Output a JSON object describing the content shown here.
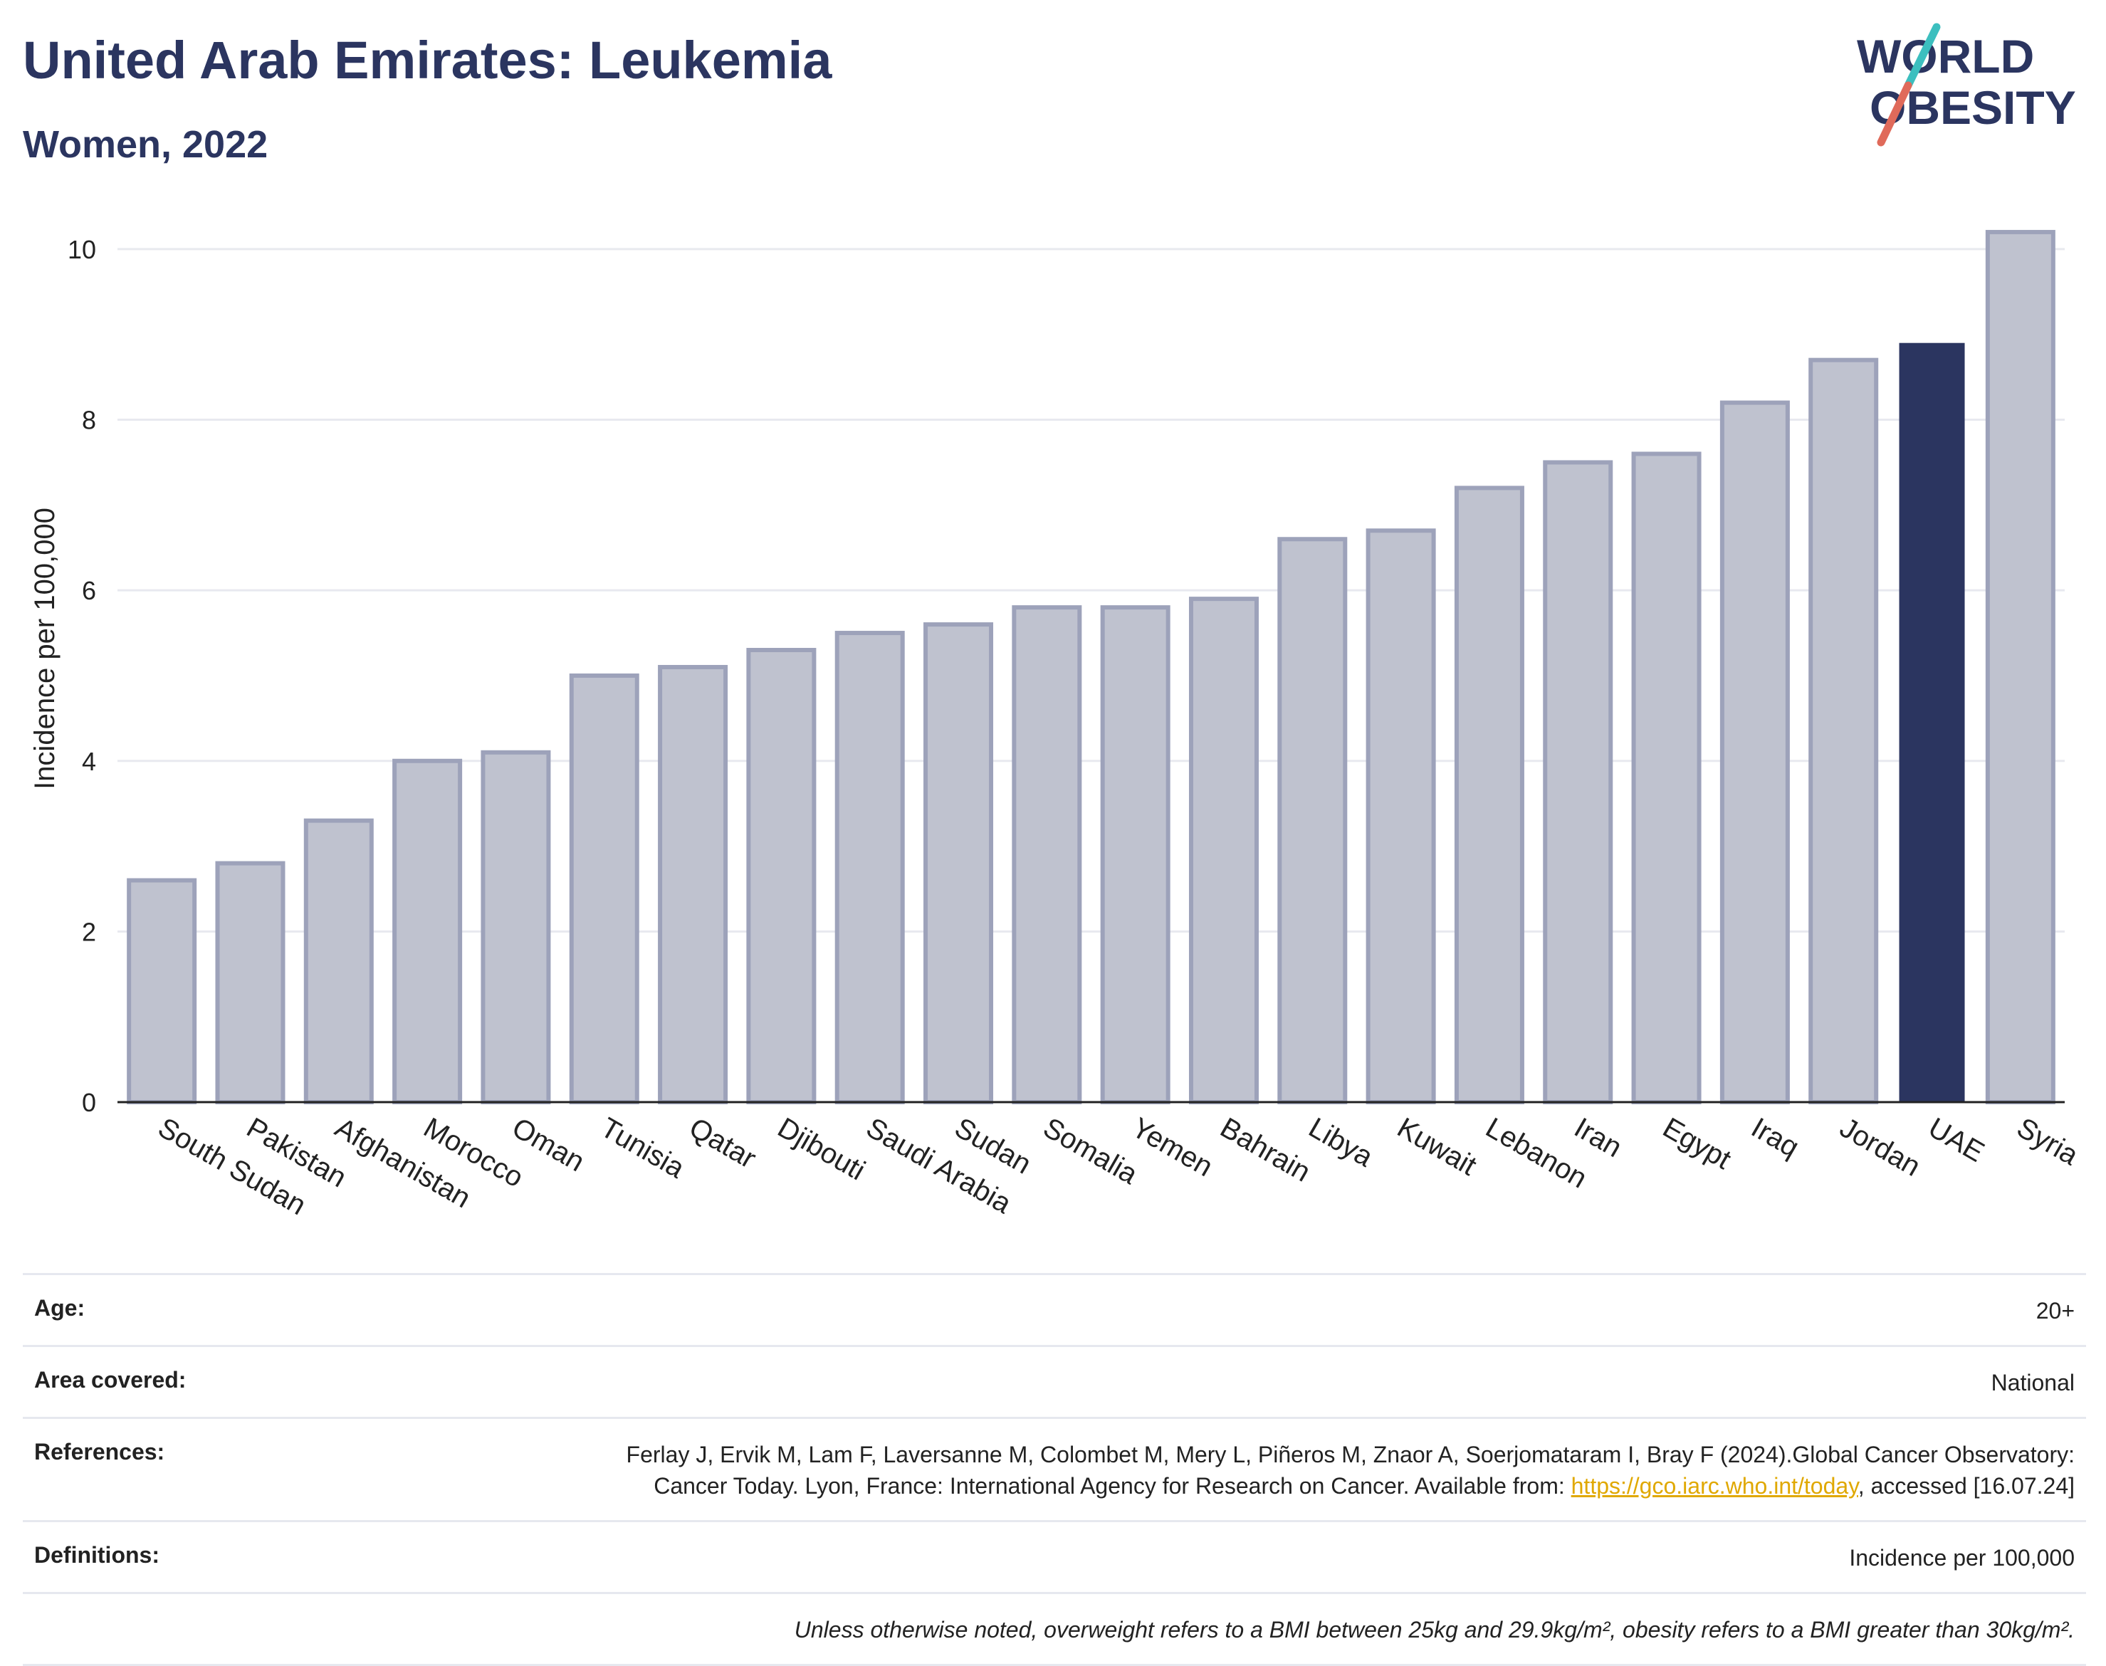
{
  "header": {
    "title": "United Arab Emirates: Leukemia",
    "subtitle": "Women, 2022"
  },
  "logo": {
    "line1": "WORLD",
    "line2": "OBESITY",
    "colors": {
      "text": "#2b3560",
      "slash_top": "#3cbfbf",
      "slash_bottom": "#e06a5a"
    }
  },
  "chart_data": {
    "type": "bar",
    "title": "",
    "xlabel": "",
    "ylabel": "Incidence per 100,000",
    "ylim": [
      0,
      10.5
    ],
    "yticks": [
      0,
      2,
      4,
      6,
      8,
      10
    ],
    "grid": true,
    "categories": [
      "South Sudan",
      "Pakistan",
      "Afghanistan",
      "Morocco",
      "Oman",
      "Tunisia",
      "Qatar",
      "Djibouti",
      "Saudi Arabia",
      "Sudan",
      "Somalia",
      "Yemen",
      "Bahrain",
      "Libya",
      "Kuwait",
      "Lebanon",
      "Iran",
      "Egypt",
      "Iraq",
      "Jordan",
      "UAE",
      "Syria"
    ],
    "values": [
      2.6,
      2.8,
      3.3,
      4.0,
      4.1,
      5.0,
      5.1,
      5.3,
      5.5,
      5.6,
      5.8,
      5.8,
      5.9,
      6.6,
      6.7,
      7.2,
      7.5,
      7.6,
      8.2,
      8.7,
      8.9,
      10.2
    ],
    "highlight": "UAE",
    "colors": {
      "bar": "#bfc2cf",
      "bar_border": "#9da2ba",
      "highlight": "#2b3560",
      "grid": "#e8e9ef",
      "axis": "#222222"
    }
  },
  "meta": {
    "age": {
      "label": "Age:",
      "value": "20+"
    },
    "area": {
      "label": "Area covered:",
      "value": "National"
    },
    "references": {
      "label": "References:",
      "text_before": "Ferlay J, Ervik M, Lam F, Laversanne M, Colombet M, Mery L, Piñeros M, Znaor A, Soerjomataram I, Bray F (2024).Global Cancer Observatory: Cancer Today. Lyon, France: International Agency for Research on Cancer. Available from:",
      "link": "https://gco.iarc.who.int/today",
      "text_after": ", accessed [16.07.24]"
    },
    "definitions": {
      "label": "Definitions:",
      "value": "Incidence per 100,000"
    },
    "note": "Unless otherwise noted, overweight refers to a BMI between 25kg and 29.9kg/m², obesity refers to a BMI greater than 30kg/m²."
  }
}
